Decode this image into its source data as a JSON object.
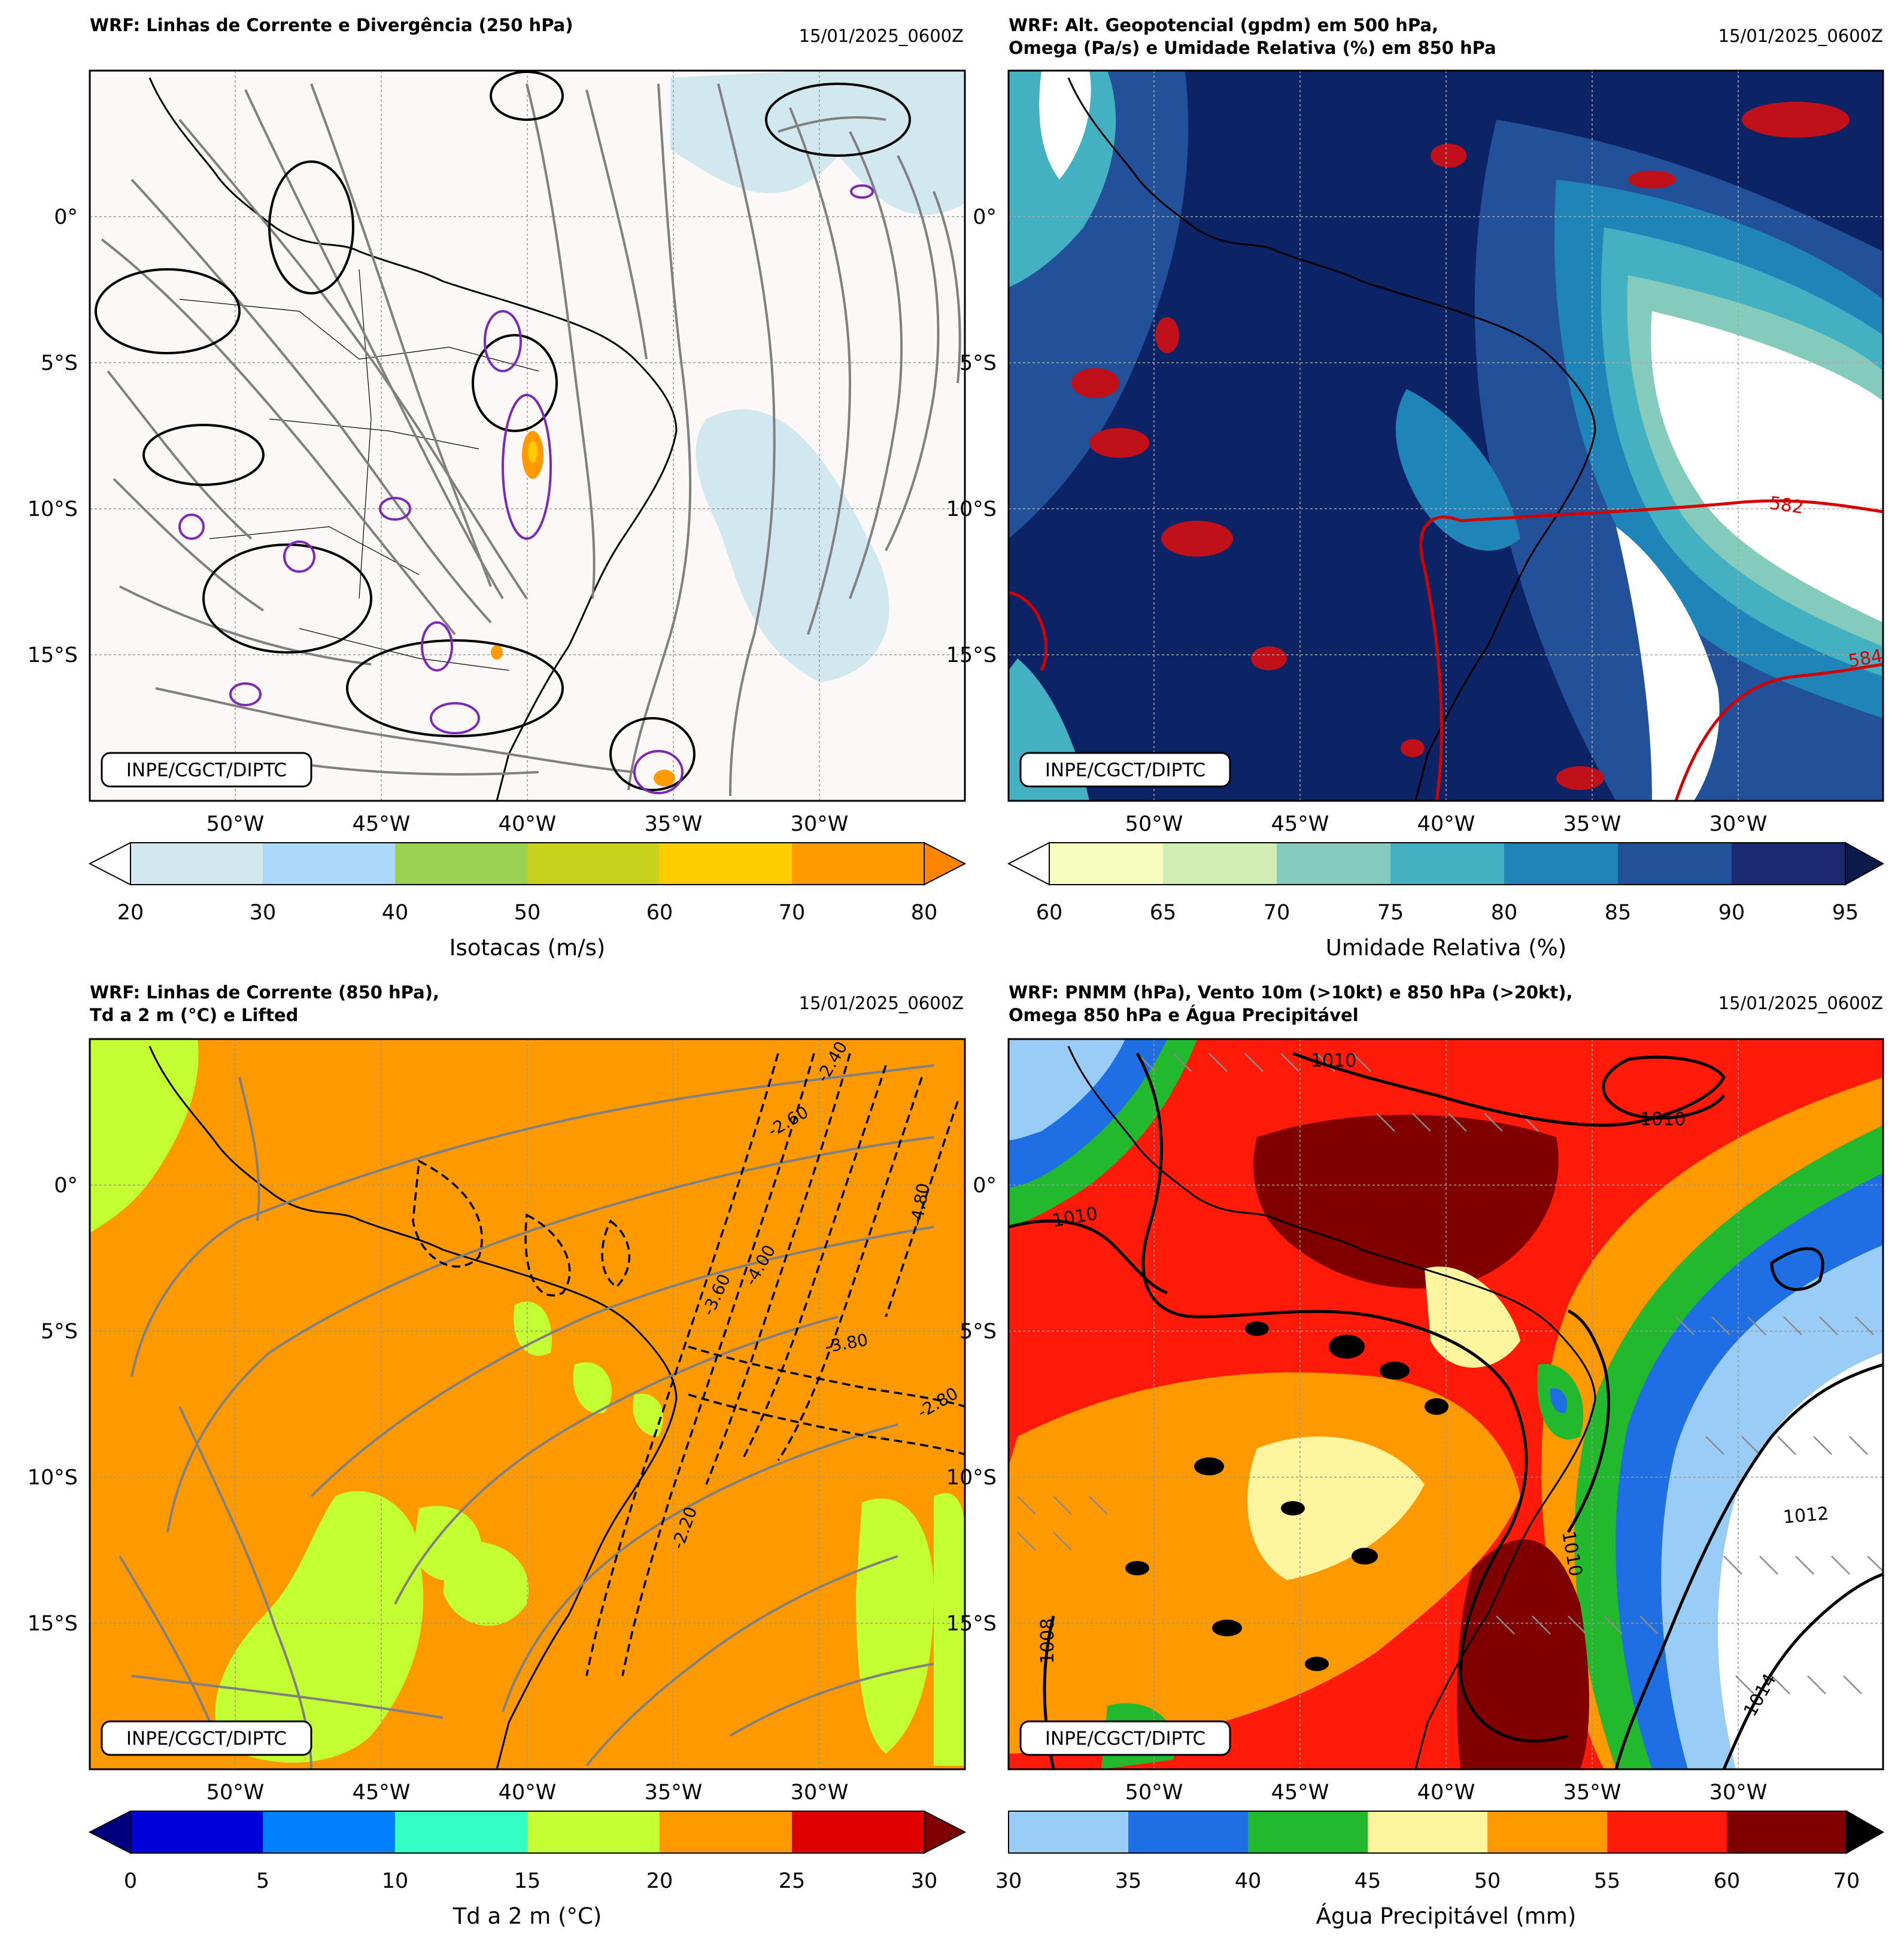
{
  "panels": [
    {
      "title_line1": "WRF: Linhas de Corrente e Divergência (250 hPa)",
      "title_line2": "",
      "datetime": "15/01/2025_0600Z",
      "credit": "INPE/CGCT/DIPTC",
      "colorbar_label": "Isotacas (m/s)",
      "colorbar_ticks": [
        "20",
        "30",
        "40",
        "50",
        "60",
        "70",
        "80"
      ],
      "colorbar_colors": [
        "#d0e8ee",
        "#acd8fa",
        "#9bd150",
        "#c8d11b",
        "#ffcc00",
        "#ff9a00",
        "#ff8400"
      ],
      "bg": "#fbf8f7"
    },
    {
      "title_line1": "WRF: Alt. Geopotencial (gpdm) em 500 hPa,",
      "title_line2": "Omega (Pa/s) e Umidade Relativa (%) em 850 hPa",
      "datetime": "15/01/2025_0600Z",
      "credit": "INPE/CGCT/DIPTC",
      "colorbar_label": "Umidade Relativa (%)",
      "colorbar_ticks": [
        "60",
        "65",
        "70",
        "75",
        "80",
        "85",
        "90",
        "95"
      ],
      "colorbar_colors": [
        "#f7fcbf",
        "#d0edb4",
        "#85cbbc",
        "#44b1c3",
        "#1f85b9",
        "#225099",
        "#192a73"
      ],
      "contour_labels": [
        "582",
        "584"
      ],
      "bg": "#0c2366"
    },
    {
      "title_line1": "WRF: Linhas de Corrente (850 hPa),",
      "title_line2": "Td a 2 m (°C) e Lifted",
      "datetime": "15/01/2025_0600Z",
      "credit": "INPE/CGCT/DIPTC",
      "colorbar_label": "Td a 2 m (°C)",
      "colorbar_ticks": [
        "0",
        "5",
        "10",
        "15",
        "20",
        "25",
        "30"
      ],
      "colorbar_colors": [
        "#0000d8",
        "#0080ff",
        "#33ffc4",
        "#c4ff33",
        "#ff9900",
        "#e00000"
      ],
      "lifted_labels": [
        "-2.40",
        "-3.60",
        "-4.80",
        "-2.60",
        "-3.80",
        "-4.00",
        "-2.80",
        "-2.20"
      ],
      "bg": "#ff9900"
    },
    {
      "title_line1": "WRF: PNMM (hPa), Vento 10m (>10kt) e 850 hPa (>20kt),",
      "title_line2": "Omega 850 hPa e Água Precipitável",
      "datetime": "15/01/2025_0600Z",
      "credit": "INPE/CGCT/DIPTC",
      "colorbar_label": "Água Precipitável (mm)",
      "colorbar_ticks": [
        "30",
        "35",
        "40",
        "45",
        "50",
        "55",
        "60",
        "70"
      ],
      "colorbar_colors": [
        "#99cdf7",
        "#1e6fe3",
        "#23b92e",
        "#fff59e",
        "#ff9900",
        "#ff1a0a",
        "#800000"
      ],
      "isobar_labels": [
        "1010",
        "1010",
        "1010",
        "1010",
        "1012",
        "1014",
        "1008"
      ],
      "bg": "#ff1a0a"
    }
  ],
  "lon_labels": [
    "50°W",
    "45°W",
    "40°W",
    "35°W",
    "30°W"
  ],
  "lat_labels": [
    "0°",
    "5°S",
    "10°S",
    "15°S"
  ]
}
